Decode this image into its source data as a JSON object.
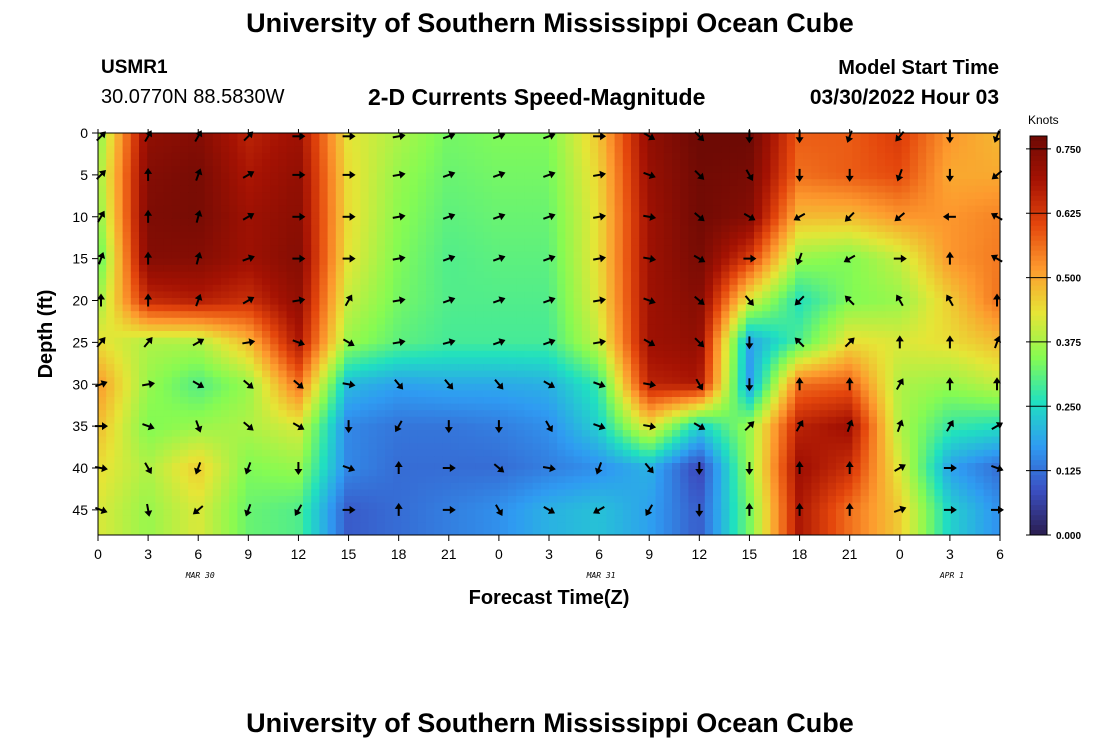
{
  "header": {
    "title": "University of Southern Mississippi Ocean Cube",
    "station": "USMR1",
    "coords": "30.0770N  88.5830W",
    "subtitle": "2-D Currents Speed-Magnitude",
    "model_start_label": "Model Start Time",
    "model_start_value": "03/30/2022 Hour 03"
  },
  "footer": {
    "title": "University of Southern Mississippi Ocean Cube"
  },
  "chart_data": {
    "type": "heatmap",
    "title": "2-D Currents Speed-Magnitude",
    "xlabel": "Forecast Time(Z)",
    "ylabel": "Depth (ft)",
    "x_tick_labels": [
      "0",
      "3",
      "6",
      "9",
      "12",
      "15",
      "18",
      "21",
      "0",
      "3",
      "6",
      "9",
      "12",
      "15",
      "18",
      "21",
      "0",
      "3",
      "6"
    ],
    "x_date_labels": [
      {
        "label": "MAR 30",
        "at_tick": 2
      },
      {
        "label": "MAR 31",
        "at_tick": 10
      },
      {
        "label": "APR 1",
        "at_tick": 17
      }
    ],
    "y_ticks": [
      0,
      5,
      10,
      15,
      20,
      25,
      30,
      35,
      40,
      45
    ],
    "ylim": [
      0,
      48
    ],
    "colorbar": {
      "units": "Knots",
      "ticks": [
        "0.000",
        "0.125",
        "0.250",
        "0.375",
        "0.500",
        "0.625",
        "0.750"
      ],
      "min": 0,
      "max": 0.775,
      "colors": [
        "#2a1d4e",
        "#3b4fc2",
        "#2f9bf2",
        "#20e0c0",
        "#86fb52",
        "#e6e536",
        "#fd9a2e",
        "#e4460c",
        "#a51203",
        "#6e0a04"
      ]
    },
    "speed_grid_note": "speed in knots; rows = depth levels 0..45 ft step 5, columns = forecast hours 0..54 step 3",
    "speed": [
      [
        0.34,
        0.72,
        0.74,
        0.66,
        0.7,
        0.43,
        0.38,
        0.33,
        0.34,
        0.34,
        0.47,
        0.72,
        0.78,
        0.78,
        0.58,
        0.58,
        0.62,
        0.52,
        0.48
      ],
      [
        0.36,
        0.74,
        0.76,
        0.68,
        0.72,
        0.44,
        0.36,
        0.32,
        0.33,
        0.33,
        0.45,
        0.71,
        0.77,
        0.76,
        0.56,
        0.58,
        0.6,
        0.5,
        0.5
      ],
      [
        0.34,
        0.75,
        0.76,
        0.7,
        0.73,
        0.44,
        0.35,
        0.31,
        0.32,
        0.32,
        0.44,
        0.7,
        0.77,
        0.74,
        0.48,
        0.48,
        0.52,
        0.52,
        0.54
      ],
      [
        0.3,
        0.74,
        0.74,
        0.7,
        0.74,
        0.43,
        0.34,
        0.3,
        0.31,
        0.31,
        0.44,
        0.7,
        0.76,
        0.62,
        0.36,
        0.34,
        0.4,
        0.52,
        0.55
      ],
      [
        0.36,
        0.65,
        0.67,
        0.64,
        0.72,
        0.4,
        0.33,
        0.3,
        0.3,
        0.3,
        0.43,
        0.7,
        0.74,
        0.42,
        0.26,
        0.34,
        0.36,
        0.46,
        0.56
      ],
      [
        0.44,
        0.38,
        0.38,
        0.48,
        0.68,
        0.36,
        0.31,
        0.29,
        0.29,
        0.29,
        0.4,
        0.7,
        0.72,
        0.18,
        0.3,
        0.44,
        0.42,
        0.44,
        0.48
      ],
      [
        0.52,
        0.36,
        0.3,
        0.36,
        0.56,
        0.21,
        0.18,
        0.19,
        0.19,
        0.2,
        0.28,
        0.66,
        0.68,
        0.17,
        0.56,
        0.58,
        0.38,
        0.36,
        0.4
      ],
      [
        0.48,
        0.34,
        0.36,
        0.38,
        0.42,
        0.15,
        0.13,
        0.13,
        0.14,
        0.16,
        0.24,
        0.44,
        0.24,
        0.36,
        0.66,
        0.7,
        0.38,
        0.28,
        0.26
      ],
      [
        0.44,
        0.38,
        0.46,
        0.34,
        0.36,
        0.15,
        0.12,
        0.12,
        0.12,
        0.14,
        0.16,
        0.2,
        0.07,
        0.36,
        0.7,
        0.64,
        0.42,
        0.18,
        0.12
      ],
      [
        0.42,
        0.36,
        0.42,
        0.32,
        0.3,
        0.1,
        0.12,
        0.14,
        0.16,
        0.2,
        0.22,
        0.18,
        0.1,
        0.33,
        0.68,
        0.56,
        0.46,
        0.24,
        0.16
      ]
    ],
    "direction_note": "current direction in degrees clockwise from north (arrow points toward)",
    "direction": [
      [
        45,
        30,
        30,
        45,
        90,
        90,
        80,
        70,
        70,
        70,
        90,
        120,
        135,
        180,
        180,
        200,
        220,
        180,
        200
      ],
      [
        45,
        0,
        20,
        60,
        90,
        90,
        80,
        70,
        70,
        70,
        80,
        110,
        135,
        150,
        180,
        180,
        200,
        180,
        230
      ],
      [
        30,
        0,
        15,
        60,
        90,
        90,
        80,
        70,
        70,
        70,
        80,
        100,
        130,
        120,
        240,
        225,
        230,
        270,
        300
      ],
      [
        20,
        0,
        15,
        70,
        90,
        90,
        80,
        70,
        70,
        70,
        80,
        100,
        120,
        90,
        200,
        240,
        90,
        0,
        300
      ],
      [
        0,
        0,
        20,
        60,
        80,
        30,
        80,
        70,
        70,
        70,
        80,
        110,
        130,
        140,
        225,
        315,
        330,
        330,
        0
      ],
      [
        40,
        40,
        60,
        80,
        110,
        120,
        80,
        75,
        70,
        70,
        80,
        120,
        135,
        180,
        315,
        45,
        0,
        0,
        20
      ],
      [
        70,
        80,
        120,
        130,
        130,
        100,
        140,
        140,
        140,
        120,
        110,
        100,
        150,
        180,
        0,
        0,
        30,
        0,
        0
      ],
      [
        90,
        110,
        160,
        130,
        120,
        180,
        210,
        180,
        180,
        150,
        110,
        100,
        120,
        45,
        30,
        20,
        20,
        30,
        60
      ],
      [
        100,
        150,
        200,
        200,
        180,
        110,
        0,
        90,
        130,
        100,
        200,
        140,
        180,
        180,
        0,
        0,
        60,
        90,
        110
      ],
      [
        110,
        170,
        230,
        200,
        210,
        90,
        0,
        90,
        150,
        120,
        240,
        210,
        180,
        0,
        0,
        0,
        70,
        90,
        90
      ]
    ]
  }
}
